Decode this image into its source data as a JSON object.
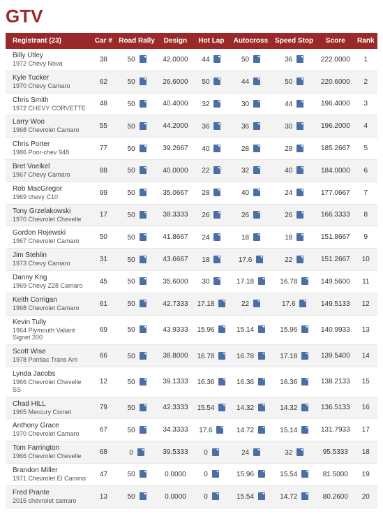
{
  "title": "GTV",
  "headers": {
    "registrant": "Registrant (23)",
    "car": "Car #",
    "roadRally": "Road Rally",
    "design": "Design",
    "hotLap": "Hot Lap",
    "autocross": "Autocross",
    "speedStop": "Speed Stop",
    "score": "Score",
    "rank": "Rank"
  },
  "rows": [
    {
      "name": "Billy Utley",
      "car": "1972 Chevy Nova",
      "num": "38",
      "rr": "50",
      "ds": "42.0000",
      "hl": "44",
      "ac": "50",
      "ss": "36",
      "sc": "222.0000",
      "rk": "1"
    },
    {
      "name": "Kyle Tucker",
      "car": "1970 Chevy Camaro",
      "num": "62",
      "rr": "50",
      "ds": "26.6000",
      "hl": "50",
      "ac": "44",
      "ss": "50",
      "sc": "220.6000",
      "rk": "2"
    },
    {
      "name": "Chris Smith",
      "car": "1972 CHEVY CORVETTE",
      "num": "48",
      "rr": "50",
      "ds": "40.4000",
      "hl": "32",
      "ac": "30",
      "ss": "44",
      "sc": "196.4000",
      "rk": "3"
    },
    {
      "name": "Larry Woo",
      "car": "1968 Chevrolet Camaro",
      "num": "55",
      "rr": "50",
      "ds": "44.2000",
      "hl": "36",
      "ac": "36",
      "ss": "30",
      "sc": "196.2000",
      "rk": "4"
    },
    {
      "name": "Chris Porter",
      "car": "1986 Poor-chev 948",
      "num": "77",
      "rr": "50",
      "ds": "39.2667",
      "hl": "40",
      "ac": "28",
      "ss": "28",
      "sc": "185.2667",
      "rk": "5"
    },
    {
      "name": "Bret Voelkel",
      "car": "1967 Chevy Camaro",
      "num": "88",
      "rr": "50",
      "ds": "40.0000",
      "hl": "22",
      "ac": "32",
      "ss": "40",
      "sc": "184.0000",
      "rk": "6"
    },
    {
      "name": "Rob MacGregor",
      "car": "1969 chevy C10",
      "num": "99",
      "rr": "50",
      "ds": "35.0667",
      "hl": "28",
      "ac": "40",
      "ss": "24",
      "sc": "177.0667",
      "rk": "7"
    },
    {
      "name": "Tony Grzelakowski",
      "car": "1970 Chevrolet Chevelle",
      "num": "17",
      "rr": "50",
      "ds": "38.3333",
      "hl": "26",
      "ac": "26",
      "ss": "26",
      "sc": "166.3333",
      "rk": "8"
    },
    {
      "name": "Gordon Rojewski",
      "car": "1967 Chevrolet Camaro",
      "num": "50",
      "rr": "50",
      "ds": "41.8667",
      "hl": "24",
      "ac": "18",
      "ss": "18",
      "sc": "151.8667",
      "rk": "9"
    },
    {
      "name": "Jim Stehlin",
      "car": "1973 Chevy Camaro",
      "num": "31",
      "rr": "50",
      "ds": "43.6667",
      "hl": "18",
      "ac": "17.6",
      "ss": "22",
      "sc": "151.2667",
      "rk": "10"
    },
    {
      "name": "Danny Kng",
      "car": "1969 Chevy Z28 Camaro",
      "num": "45",
      "rr": "50",
      "ds": "35.6000",
      "hl": "30",
      "ac": "17.18",
      "ss": "16.78",
      "sc": "149.5600",
      "rk": "11"
    },
    {
      "name": "Keith Corrigan",
      "car": "1968 Chevrolet Camaro",
      "num": "61",
      "rr": "50",
      "ds": "42.7333",
      "hl": "17.18",
      "ac": "22",
      "ss": "17.6",
      "sc": "149.5133",
      "rk": "12"
    },
    {
      "name": "Kevin Tully",
      "car": "1964 Plymouth Valiant Signet 200",
      "num": "69",
      "rr": "50",
      "ds": "43.9333",
      "hl": "15.96",
      "ac": "15.14",
      "ss": "15.96",
      "sc": "140.9933",
      "rk": "13"
    },
    {
      "name": "Scott Wise",
      "car": "1978 Pontiac Trans Am",
      "num": "66",
      "rr": "50",
      "ds": "38.8000",
      "hl": "16.78",
      "ac": "16.78",
      "ss": "17.18",
      "sc": "139.5400",
      "rk": "14"
    },
    {
      "name": "Lynda Jacobs",
      "car": "1966 Chevrolet Chevelle SS",
      "num": "12",
      "rr": "50",
      "ds": "39.1333",
      "hl": "16.36",
      "ac": "16.36",
      "ss": "16.36",
      "sc": "138.2133",
      "rk": "15"
    },
    {
      "name": "Chad HILL",
      "car": "1965 Mercury Comet",
      "num": "79",
      "rr": "50",
      "ds": "42.3333",
      "hl": "15.54",
      "ac": "14.32",
      "ss": "14.32",
      "sc": "136.5133",
      "rk": "16"
    },
    {
      "name": "Anthony Grace",
      "car": "1970 Chevrolet Camaro",
      "num": "67",
      "rr": "50",
      "ds": "34.3333",
      "hl": "17.6",
      "ac": "14.72",
      "ss": "15.14",
      "sc": "131.7933",
      "rk": "17"
    },
    {
      "name": "Tom Farrington",
      "car": "1966 Chevrolet Chevelle",
      "num": "68",
      "rr": "0",
      "ds": "39.5333",
      "hl": "0",
      "ac": "24",
      "ss": "32",
      "sc": "95.5333",
      "rk": "18"
    },
    {
      "name": "Brandon Miller",
      "car": "1971 Chevrolet El Camino",
      "num": "47",
      "rr": "50",
      "ds": "0.0000",
      "hl": "0",
      "ac": "15.96",
      "ss": "15.54",
      "sc": "81.5000",
      "rk": "19"
    },
    {
      "name": "Fred Prante",
      "car": "2015 chevrolet camaro",
      "num": "13",
      "rr": "50",
      "ds": "0.0000",
      "hl": "0",
      "ac": "15.54",
      "ss": "14.72",
      "sc": "80.2600",
      "rk": "20"
    }
  ]
}
